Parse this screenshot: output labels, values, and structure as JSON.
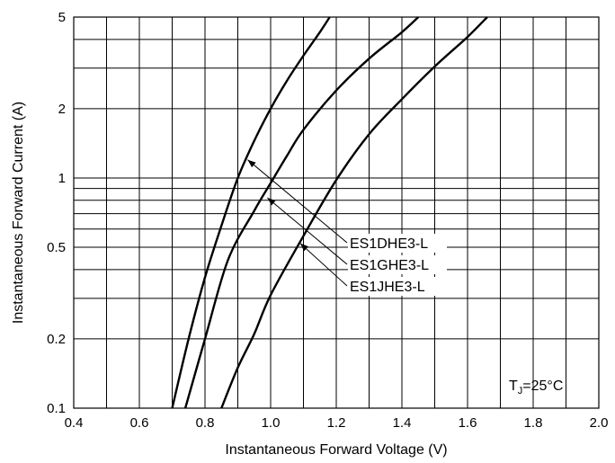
{
  "chart_data": {
    "type": "line",
    "xlabel": "Instantaneous Forward Voltage (V)",
    "ylabel": "Instantaneous Forward Current (A)",
    "xlim": [
      0.4,
      2.0
    ],
    "ylim": [
      0.1,
      5
    ],
    "yscale": "log",
    "grid": true,
    "x_ticks": [
      0.4,
      0.6,
      0.8,
      1.0,
      1.2,
      1.4,
      1.6,
      1.8,
      2.0
    ],
    "x_tick_labels": [
      "0.4",
      "0.6",
      "0.8",
      "1.0",
      "1.2",
      "1.4",
      "1.6",
      "1.8",
      "2.0"
    ],
    "y_ticks": [
      0.1,
      0.2,
      0.5,
      1,
      2,
      5
    ],
    "y_tick_labels": [
      "0.1",
      "0.2",
      "0.5",
      "1",
      "2",
      "5"
    ],
    "series": [
      {
        "name": "ES1DHE3-L",
        "points": [
          [
            0.7,
            0.1
          ],
          [
            0.75,
            0.2
          ],
          [
            0.8,
            0.37
          ],
          [
            0.85,
            0.62
          ],
          [
            0.9,
            1.0
          ],
          [
            0.95,
            1.45
          ],
          [
            1.0,
            2.0
          ],
          [
            1.05,
            2.65
          ],
          [
            1.1,
            3.4
          ],
          [
            1.15,
            4.3
          ],
          [
            1.18,
            5.0
          ]
        ]
      },
      {
        "name": "ES1GHE3-L",
        "points": [
          [
            0.74,
            0.1
          ],
          [
            0.8,
            0.2
          ],
          [
            0.87,
            0.44
          ],
          [
            0.95,
            0.72
          ],
          [
            1.0,
            0.95
          ],
          [
            1.05,
            1.25
          ],
          [
            1.1,
            1.62
          ],
          [
            1.2,
            2.4
          ],
          [
            1.3,
            3.3
          ],
          [
            1.4,
            4.3
          ],
          [
            1.45,
            5.0
          ]
        ]
      },
      {
        "name": "ES1JHE3-L",
        "points": [
          [
            0.85,
            0.1
          ],
          [
            0.9,
            0.15
          ],
          [
            0.95,
            0.21
          ],
          [
            1.0,
            0.31
          ],
          [
            1.1,
            0.56
          ],
          [
            1.2,
            0.98
          ],
          [
            1.3,
            1.55
          ],
          [
            1.4,
            2.2
          ],
          [
            1.5,
            3.05
          ],
          [
            1.6,
            4.1
          ],
          [
            1.66,
            5.0
          ]
        ]
      }
    ],
    "annotations": [
      {
        "text": "ES1DHE3-L",
        "arrow_to": [
          0.93,
          1.2
        ]
      },
      {
        "text": "ES1GHE3-L",
        "arrow_to": [
          0.99,
          0.82
        ]
      },
      {
        "text": "ES1JHE3-L",
        "arrow_to": [
          1.09,
          0.52
        ]
      }
    ],
    "condition_label": {
      "main": "T",
      "sub": "J",
      "rest": "=25°C"
    },
    "colors": {
      "line": "#000000",
      "grid": "#000000",
      "background": "#ffffff"
    }
  }
}
